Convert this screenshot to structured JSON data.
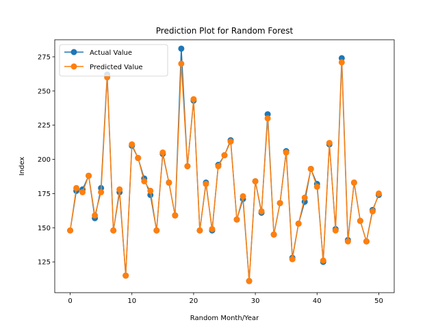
{
  "chart_data": {
    "type": "line",
    "title": "Prediction Plot for Random Forest",
    "xlabel": "Random Month/Year",
    "ylabel": "Index",
    "xlim": [
      -2.5,
      52.5
    ],
    "ylim": [
      102.5,
      287.5
    ],
    "xticks": [
      0,
      10,
      20,
      30,
      40,
      50
    ],
    "yticks": [
      125,
      150,
      175,
      200,
      225,
      250,
      275
    ],
    "legend_position": "upper-left",
    "x": [
      0,
      1,
      2,
      3,
      4,
      5,
      6,
      7,
      8,
      9,
      10,
      11,
      12,
      13,
      14,
      15,
      16,
      17,
      18,
      19,
      20,
      21,
      22,
      23,
      24,
      25,
      26,
      27,
      28,
      29,
      30,
      31,
      32,
      33,
      34,
      35,
      36,
      37,
      38,
      39,
      40,
      41,
      42,
      43,
      44,
      45,
      46,
      47,
      48,
      49,
      50
    ],
    "series": [
      {
        "name": "Actual Value",
        "color": "#1f77b4",
        "values": [
          148,
          177,
          178,
          188,
          157,
          179,
          262,
          148,
          176,
          115,
          210,
          201,
          186,
          174,
          148,
          204,
          183,
          159,
          281,
          195,
          243,
          148,
          183,
          148,
          196,
          203,
          214,
          156,
          171,
          111,
          184,
          161,
          233,
          145,
          168,
          206,
          128,
          153,
          169,
          193,
          182,
          125,
          211,
          149,
          274,
          141,
          183,
          155,
          140,
          163,
          174
        ]
      },
      {
        "name": "Predicted Value",
        "color": "#ff7f0e",
        "values": [
          148,
          179,
          176,
          188,
          159,
          176,
          260,
          148,
          178,
          115,
          211,
          201,
          184,
          177,
          148,
          205,
          183,
          159,
          270,
          195,
          244,
          148,
          182,
          149,
          195,
          203,
          213,
          156,
          173,
          111,
          184,
          162,
          230,
          145,
          168,
          205,
          127,
          153,
          172,
          193,
          180,
          126,
          212,
          148,
          271,
          140,
          183,
          155,
          140,
          162,
          175
        ]
      }
    ]
  }
}
